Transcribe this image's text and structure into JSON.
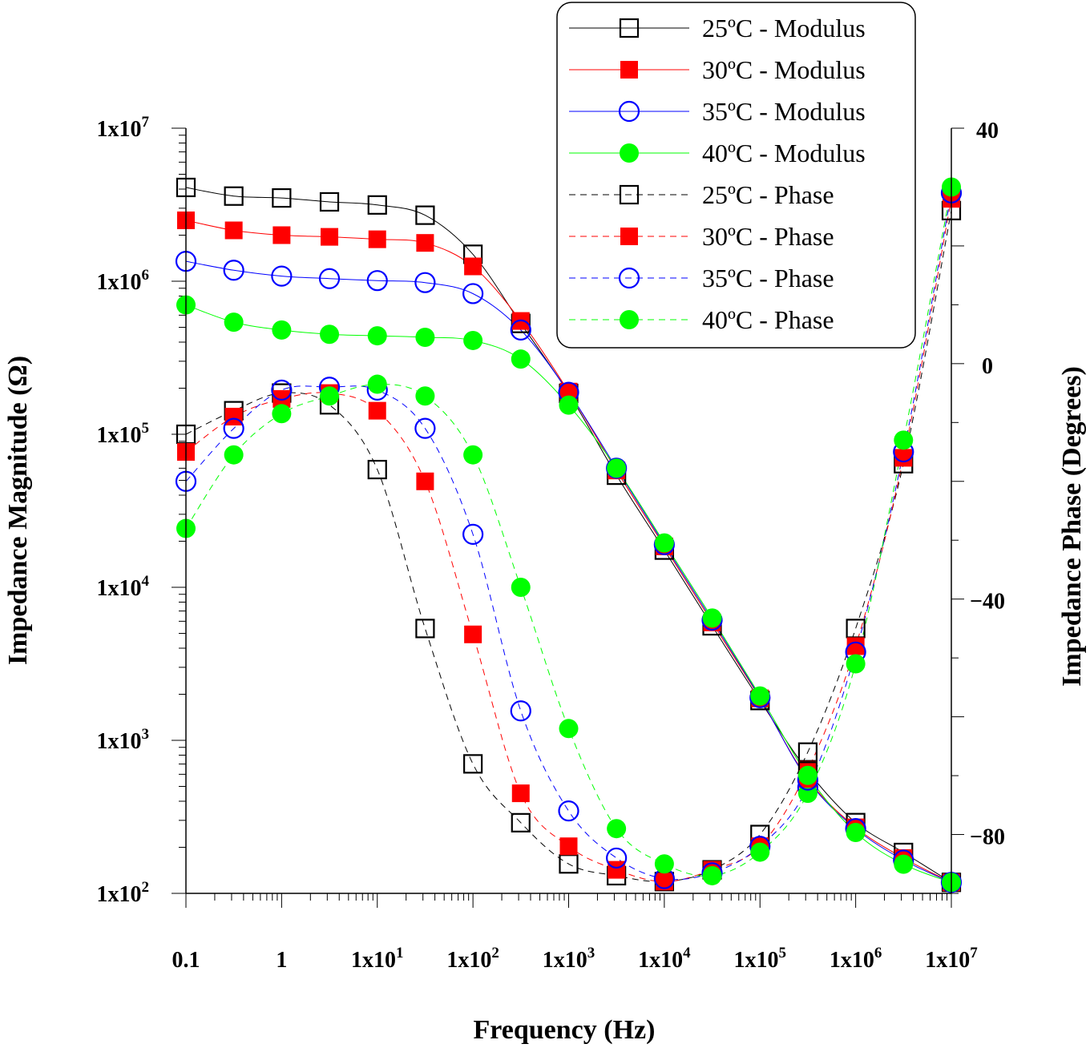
{
  "chart_data": {
    "type": "line",
    "title": "",
    "xlabel": "Frequency (Hz)",
    "ylabel_left": "Impedance Magnitude (Ω)",
    "ylabel_right": "Impedance Phase (Degrees)",
    "x_scale": "log",
    "xlim": [
      0.1,
      10000000
    ],
    "y_left_scale": "log",
    "y_left_lim": [
      100,
      10000000
    ],
    "y_right_lim": [
      -90,
      40
    ],
    "x_ticks": [
      {
        "value": 0.1,
        "base": "0.1",
        "exp": ""
      },
      {
        "value": 1,
        "base": "1",
        "exp": ""
      },
      {
        "value": 10,
        "base": "1x10",
        "exp": "1"
      },
      {
        "value": 100,
        "base": "1x10",
        "exp": "2"
      },
      {
        "value": 1000,
        "base": "1x10",
        "exp": "3"
      },
      {
        "value": 10000,
        "base": "1x10",
        "exp": "4"
      },
      {
        "value": 100000,
        "base": "1x10",
        "exp": "5"
      },
      {
        "value": 1000000,
        "base": "1x10",
        "exp": "6"
      },
      {
        "value": 10000000,
        "base": "1x10",
        "exp": "7"
      }
    ],
    "y_left_ticks": [
      {
        "value": 100,
        "base": "1x10",
        "exp": "2"
      },
      {
        "value": 1000,
        "base": "1x10",
        "exp": "3"
      },
      {
        "value": 10000,
        "base": "1x10",
        "exp": "4"
      },
      {
        "value": 100000,
        "base": "1x10",
        "exp": "5"
      },
      {
        "value": 1000000,
        "base": "1x10",
        "exp": "6"
      },
      {
        "value": 10000000,
        "base": "1x10",
        "exp": "7"
      }
    ],
    "y_right_ticks": [
      {
        "value": 40,
        "label": "40"
      },
      {
        "value": 0,
        "label": "0"
      },
      {
        "value": -40,
        "label": "−40"
      },
      {
        "value": -80,
        "label": "−80"
      }
    ],
    "legend_position": "top-right",
    "x": [
      0.1,
      0.316,
      1,
      3.16,
      10,
      31.6,
      100,
      316,
      1000,
      3160,
      10000,
      31600,
      100000,
      316000,
      1000000,
      3160000,
      10000000
    ],
    "series": [
      {
        "name": "25ºC - Modulus",
        "axis": "left",
        "color": "#000000",
        "marker": "square-open",
        "line": "solid",
        "values": [
          4100000,
          3600000,
          3500000,
          3300000,
          3150000,
          2700000,
          1500000,
          530000,
          185000,
          54000,
          17500,
          5600,
          1820,
          630,
          290,
          185,
          118
        ]
      },
      {
        "name": "30ºC - Modulus",
        "axis": "left",
        "color": "#ff0000",
        "marker": "square-filled",
        "line": "solid",
        "values": [
          2500000,
          2150000,
          2000000,
          1950000,
          1880000,
          1780000,
          1250000,
          550000,
          190000,
          58000,
          18500,
          5900,
          1880,
          560,
          270,
          170,
          118
        ]
      },
      {
        "name": "35ºC - Modulus",
        "axis": "left",
        "color": "#0000ff",
        "marker": "circle-open",
        "line": "solid",
        "values": [
          1350000,
          1180000,
          1080000,
          1040000,
          1010000,
          980000,
          830000,
          480000,
          188000,
          60000,
          19000,
          6100,
          1900,
          550,
          265,
          165,
          118
        ]
      },
      {
        "name": "40ºC - Modulus",
        "axis": "left",
        "color": "#00ff00",
        "marker": "circle-filled",
        "line": "solid",
        "values": [
          700000,
          540000,
          480000,
          450000,
          440000,
          430000,
          410000,
          310000,
          155000,
          60000,
          19500,
          6300,
          1950,
          590,
          250,
          155,
          118
        ]
      },
      {
        "name": "25ºC - Phase",
        "axis": "right",
        "color": "#000000",
        "marker": "square-open",
        "line": "dashed",
        "values": [
          -12,
          -8,
          -5,
          -7,
          -18,
          -45,
          -68,
          -78,
          -85,
          -87,
          -88,
          -86,
          -80,
          -66,
          -45,
          -17,
          26
        ]
      },
      {
        "name": "30ºC - Phase",
        "axis": "right",
        "color": "#ff0000",
        "marker": "square-filled",
        "line": "dashed",
        "values": [
          -15,
          -9,
          -6,
          -5,
          -8,
          -20,
          -46,
          -73,
          -82,
          -86,
          -88,
          -86,
          -82,
          -69,
          -48,
          -16,
          28
        ]
      },
      {
        "name": "35ºC - Phase",
        "axis": "right",
        "color": "#0000ff",
        "marker": "circle-open",
        "line": "dashed",
        "values": [
          -20,
          -11,
          -4.5,
          -4,
          -4.5,
          -11,
          -29,
          -59,
          -76,
          -84,
          -87.5,
          -86.5,
          -82,
          -72,
          -49,
          -15,
          29
        ]
      },
      {
        "name": "40ºC - Phase",
        "axis": "right",
        "color": "#00ff00",
        "marker": "circle-filled",
        "line": "dashed",
        "values": [
          -28,
          -15.5,
          -8.5,
          -5.5,
          -3.5,
          -5.5,
          -15.5,
          -38,
          -62,
          -79,
          -85,
          -87,
          -83,
          -73,
          -51,
          -13,
          30
        ]
      }
    ]
  }
}
